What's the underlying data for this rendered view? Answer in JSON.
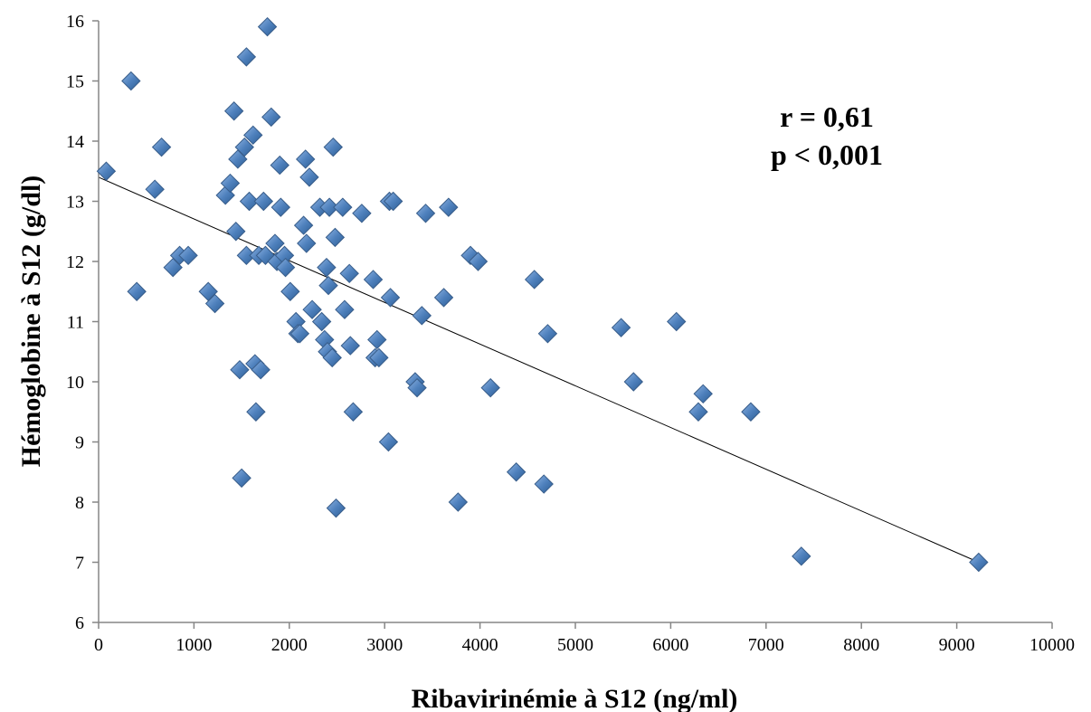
{
  "chart_data": {
    "type": "scatter",
    "title": "",
    "xlabel": "Ribavirinémie à S12 (ng/ml)",
    "ylabel": "Hémoglobine à S12 (g/dl)",
    "xlim": [
      0,
      10000
    ],
    "ylim": [
      6,
      16
    ],
    "xticks": [
      "0",
      "1000",
      "2000",
      "3000",
      "4000",
      "5000",
      "6000",
      "7000",
      "8000",
      "9000",
      "10000"
    ],
    "yticks": [
      "6",
      "7",
      "8",
      "9",
      "10",
      "11",
      "12",
      "13",
      "14",
      "15",
      "16"
    ],
    "grid": false,
    "legend": "none",
    "marker": "diamond",
    "marker_color": "#4f81bd",
    "annotations": [
      "r = 0,61",
      "p < 0,001"
    ],
    "trendline": {
      "x": [
        0,
        9230
      ],
      "y": [
        13.4,
        7.0
      ]
    },
    "points": [
      [
        80,
        13.5
      ],
      [
        340,
        15.0
      ],
      [
        400,
        11.5
      ],
      [
        590,
        13.2
      ],
      [
        660,
        13.9
      ],
      [
        780,
        11.9
      ],
      [
        850,
        12.1
      ],
      [
        940,
        12.1
      ],
      [
        1150,
        11.5
      ],
      [
        1220,
        11.3
      ],
      [
        1330,
        13.1
      ],
      [
        1380,
        13.3
      ],
      [
        1420,
        14.5
      ],
      [
        1440,
        12.5
      ],
      [
        1460,
        13.7
      ],
      [
        1480,
        10.2
      ],
      [
        1500,
        8.4
      ],
      [
        1530,
        13.9
      ],
      [
        1550,
        15.4
      ],
      [
        1550,
        12.1
      ],
      [
        1580,
        13.0
      ],
      [
        1620,
        14.1
      ],
      [
        1640,
        10.3
      ],
      [
        1650,
        9.5
      ],
      [
        1680,
        12.1
      ],
      [
        1700,
        10.2
      ],
      [
        1730,
        13.0
      ],
      [
        1750,
        12.1
      ],
      [
        1770,
        15.9
      ],
      [
        1810,
        14.4
      ],
      [
        1850,
        12.3
      ],
      [
        1870,
        12.0
      ],
      [
        1900,
        13.6
      ],
      [
        1910,
        12.9
      ],
      [
        1950,
        12.1
      ],
      [
        1960,
        11.9
      ],
      [
        2010,
        11.5
      ],
      [
        2070,
        11.0
      ],
      [
        2090,
        10.8
      ],
      [
        2110,
        10.8
      ],
      [
        2150,
        12.6
      ],
      [
        2170,
        13.7
      ],
      [
        2180,
        12.3
      ],
      [
        2210,
        13.4
      ],
      [
        2240,
        11.2
      ],
      [
        2320,
        12.9
      ],
      [
        2340,
        11.0
      ],
      [
        2370,
        10.7
      ],
      [
        2390,
        11.9
      ],
      [
        2400,
        10.5
      ],
      [
        2410,
        11.6
      ],
      [
        2420,
        12.9
      ],
      [
        2450,
        10.4
      ],
      [
        2460,
        13.9
      ],
      [
        2480,
        12.4
      ],
      [
        2490,
        7.9
      ],
      [
        2560,
        12.9
      ],
      [
        2580,
        11.2
      ],
      [
        2630,
        11.8
      ],
      [
        2640,
        10.6
      ],
      [
        2670,
        9.5
      ],
      [
        2760,
        12.8
      ],
      [
        2880,
        11.7
      ],
      [
        2900,
        10.4
      ],
      [
        2920,
        10.7
      ],
      [
        2940,
        10.4
      ],
      [
        3040,
        9.0
      ],
      [
        3050,
        13.0
      ],
      [
        3060,
        11.4
      ],
      [
        3090,
        13.0
      ],
      [
        3320,
        10.0
      ],
      [
        3340,
        9.9
      ],
      [
        3390,
        11.1
      ],
      [
        3430,
        12.8
      ],
      [
        3620,
        11.4
      ],
      [
        3670,
        12.9
      ],
      [
        3770,
        8.0
      ],
      [
        3900,
        12.1
      ],
      [
        3980,
        12.0
      ],
      [
        4110,
        9.9
      ],
      [
        4380,
        8.5
      ],
      [
        4570,
        11.7
      ],
      [
        4670,
        8.3
      ],
      [
        4710,
        10.8
      ],
      [
        5480,
        10.9
      ],
      [
        5610,
        10.0
      ],
      [
        6060,
        11.0
      ],
      [
        6290,
        9.5
      ],
      [
        6340,
        9.8
      ],
      [
        6840,
        9.5
      ],
      [
        7370,
        7.1
      ],
      [
        9230,
        7.0
      ]
    ]
  }
}
